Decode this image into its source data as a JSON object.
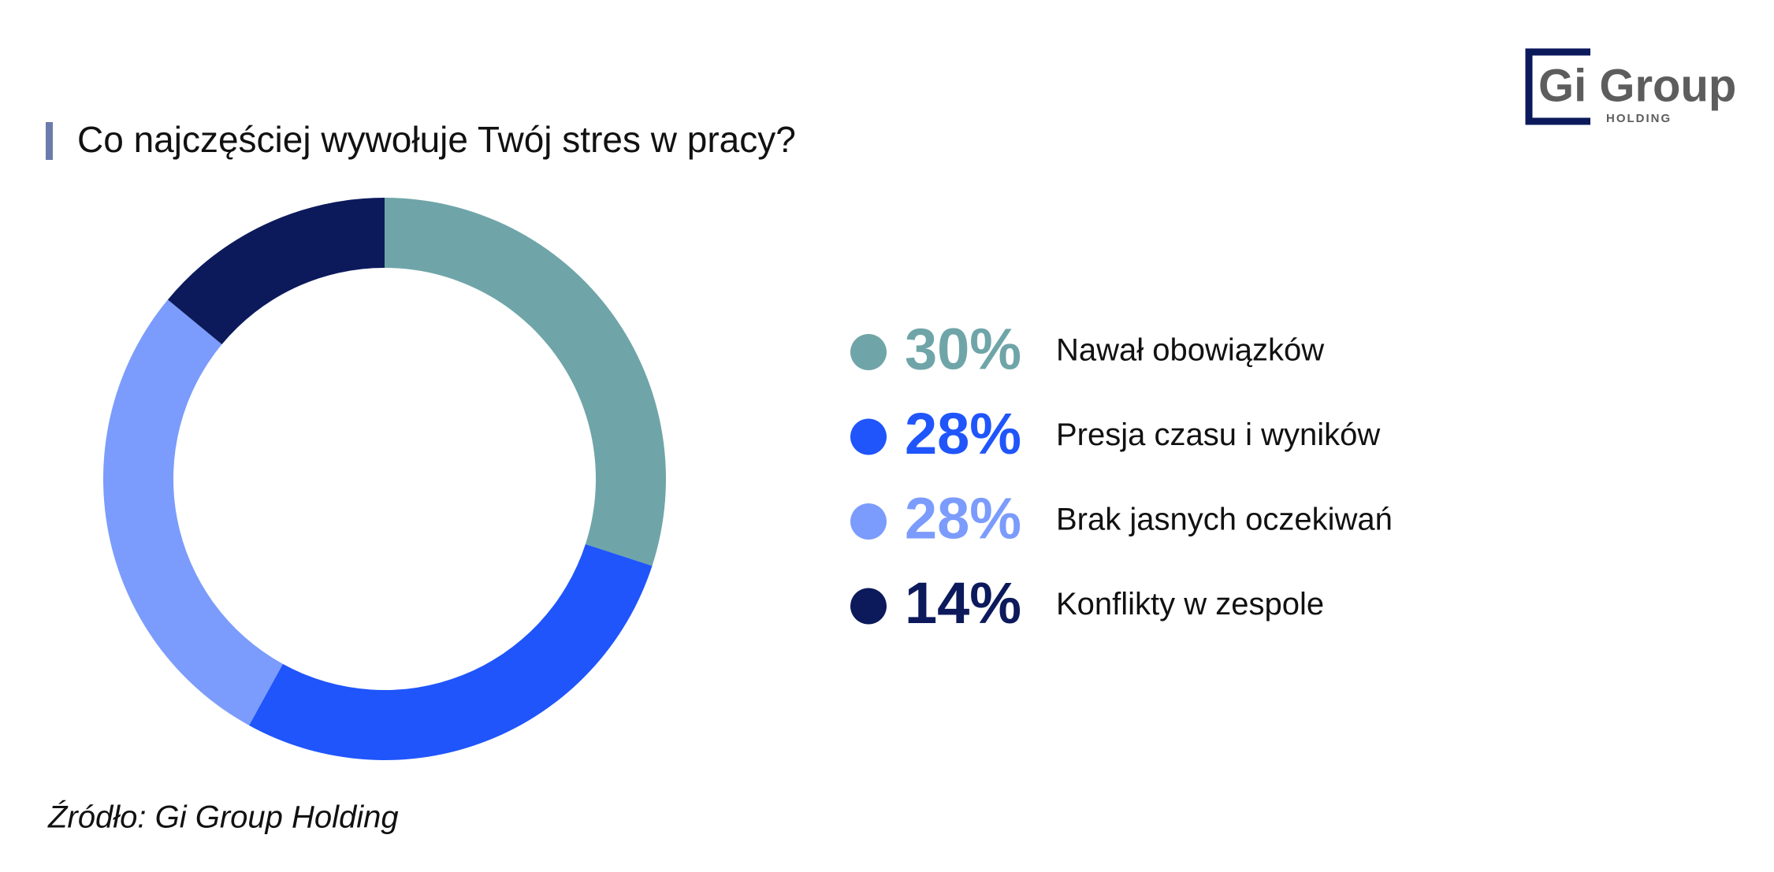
{
  "logo": {
    "name": "Gi Group",
    "sub": "HOLDING"
  },
  "chart_data": {
    "type": "pie",
    "donut": true,
    "title": "Co najczęściej wywołuje Twój stres w pracy?",
    "source": "Źródło: Gi Group Holding",
    "categories": [
      "Nawał obowiązków",
      "Presja czasu i wyników",
      "Brak jasnych oczekiwań",
      "Konflikty w zespole"
    ],
    "values": [
      30,
      28,
      28,
      14
    ],
    "value_labels": [
      "30%",
      "28%",
      "28%",
      "14%"
    ],
    "colors": [
      "#6fa5a8",
      "#1f55fb",
      "#7b9cfc",
      "#0c1a5c"
    ]
  }
}
